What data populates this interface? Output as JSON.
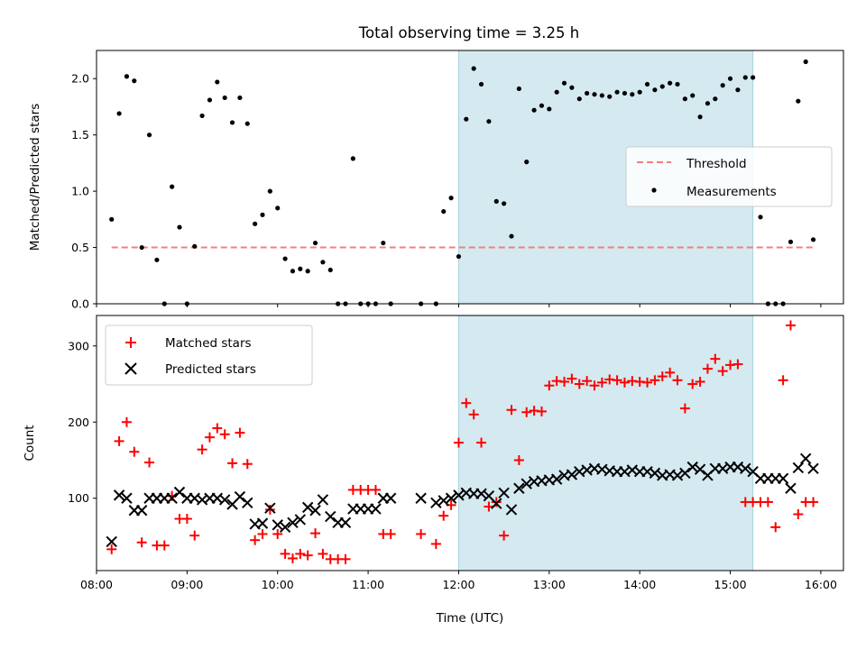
{
  "chart_data": [
    {
      "type": "scatter",
      "panel": "top",
      "title": "Total observing time = 3.25 h",
      "xlabel": "",
      "ylabel": "Matched/Predicted stars",
      "xlim": [
        "08:00",
        "16:15"
      ],
      "ylim": [
        0,
        2.25
      ],
      "yticks": [
        "0.0",
        "0.5",
        "1.0",
        "1.5",
        "2.0"
      ],
      "grid": false,
      "legend_position": "right",
      "highlight_band": {
        "from": "12:00",
        "to": "15:15",
        "color": "#d4eaf0"
      },
      "series": [
        {
          "name": "Threshold",
          "style": "dashed-line",
          "color": "#f08080",
          "x": [
            "08:10",
            "15:55"
          ],
          "y": [
            0.5,
            0.5
          ]
        },
        {
          "name": "Measurements",
          "style": "dot",
          "color": "#000000",
          "x": [
            "08:10",
            "08:15",
            "08:20",
            "08:25",
            "08:30",
            "08:35",
            "08:40",
            "08:45",
            "08:50",
            "08:55",
            "09:00",
            "09:05",
            "09:10",
            "09:15",
            "09:20",
            "09:25",
            "09:30",
            "09:35",
            "09:40",
            "09:45",
            "09:50",
            "09:55",
            "10:00",
            "10:05",
            "10:10",
            "10:15",
            "10:20",
            "10:25",
            "10:30",
            "10:35",
            "10:40",
            "10:45",
            "10:50",
            "10:55",
            "11:00",
            "11:05",
            "11:10",
            "11:15",
            "11:35",
            "11:45",
            "11:50",
            "11:55",
            "12:00",
            "12:05",
            "12:10",
            "12:15",
            "12:20",
            "12:25",
            "12:30",
            "12:35",
            "12:40",
            "12:45",
            "12:50",
            "12:55",
            "13:00",
            "13:05",
            "13:10",
            "13:15",
            "13:20",
            "13:25",
            "13:30",
            "13:35",
            "13:40",
            "13:45",
            "13:50",
            "13:55",
            "14:00",
            "14:05",
            "14:10",
            "14:15",
            "14:20",
            "14:25",
            "14:30",
            "14:35",
            "14:40",
            "14:45",
            "14:50",
            "14:55",
            "15:00",
            "15:05",
            "15:10",
            "15:15",
            "15:20",
            "15:25",
            "15:30",
            "15:35",
            "15:40",
            "15:45",
            "15:50",
            "15:55"
          ],
          "y": [
            0.75,
            1.69,
            2.02,
            1.98,
            0.5,
            1.5,
            0.39,
            0.0,
            1.04,
            0.68,
            0.0,
            0.51,
            1.67,
            1.81,
            1.97,
            1.83,
            1.61,
            1.83,
            1.6,
            0.71,
            0.79,
            1.0,
            0.85,
            0.4,
            0.29,
            0.31,
            0.29,
            0.54,
            0.37,
            0.3,
            0.0,
            0.0,
            1.29,
            0.0,
            0.0,
            0.0,
            0.54,
            0.0,
            0.0,
            0.0,
            0.82,
            0.94,
            0.42,
            1.64,
            2.09,
            1.95,
            1.62,
            0.91,
            0.89,
            0.6,
            1.91,
            1.26,
            1.72,
            1.76,
            1.73,
            1.88,
            1.96,
            1.92,
            1.82,
            1.87,
            1.86,
            1.85,
            1.84,
            1.88,
            1.87,
            1.86,
            1.88,
            1.95,
            1.9,
            1.93,
            1.96,
            1.95,
            1.82,
            1.85,
            1.66,
            1.78,
            1.82,
            1.94,
            2.0,
            1.9,
            2.01,
            2.01,
            0.77,
            0.0,
            0.0,
            0.0,
            0.55,
            1.8,
            2.15,
            0.57
          ]
        }
      ]
    },
    {
      "type": "scatter",
      "panel": "bottom",
      "title": "",
      "xlabel": "Time (UTC)",
      "ylabel": "Count",
      "xlim": [
        "08:00",
        "16:15"
      ],
      "ylim": [
        5,
        340
      ],
      "xticks": [
        "08:00",
        "09:00",
        "10:00",
        "11:00",
        "12:00",
        "13:00",
        "14:00",
        "15:00",
        "16:00"
      ],
      "yticks": [
        "100",
        "200",
        "300"
      ],
      "grid": false,
      "legend_position": "top-left",
      "highlight_band": {
        "from": "12:00",
        "to": "15:15",
        "color": "#d4eaf0"
      },
      "series": [
        {
          "name": "Matched stars",
          "marker": "plus",
          "color": "#ff0000",
          "x": [
            "08:10",
            "08:15",
            "08:20",
            "08:25",
            "08:30",
            "08:35",
            "08:40",
            "08:45",
            "08:50",
            "08:55",
            "09:00",
            "09:05",
            "09:10",
            "09:15",
            "09:20",
            "09:25",
            "09:30",
            "09:35",
            "09:40",
            "09:45",
            "09:50",
            "09:55",
            "10:00",
            "10:05",
            "10:10",
            "10:15",
            "10:20",
            "10:25",
            "10:30",
            "10:35",
            "10:40",
            "10:45",
            "10:50",
            "10:55",
            "11:00",
            "11:05",
            "11:10",
            "11:15",
            "11:35",
            "11:45",
            "11:50",
            "11:55",
            "12:00",
            "12:05",
            "12:10",
            "12:15",
            "12:20",
            "12:25",
            "12:30",
            "12:35",
            "12:40",
            "12:45",
            "12:50",
            "12:55",
            "13:00",
            "13:05",
            "13:10",
            "13:15",
            "13:20",
            "13:25",
            "13:30",
            "13:35",
            "13:40",
            "13:45",
            "13:50",
            "13:55",
            "14:00",
            "14:05",
            "14:10",
            "14:15",
            "14:20",
            "14:25",
            "14:30",
            "14:35",
            "14:40",
            "14:45",
            "14:50",
            "14:55",
            "15:00",
            "15:05",
            "15:10",
            "15:15",
            "15:20",
            "15:25",
            "15:30",
            "15:35",
            "15:40",
            "15:45",
            "15:50",
            "15:55"
          ],
          "y": [
            33,
            175,
            200,
            161,
            42,
            147,
            38,
            38,
            103,
            73,
            73,
            51,
            164,
            180,
            192,
            184,
            146,
            186,
            145,
            45,
            53,
            85,
            53,
            27,
            21,
            27,
            25,
            54,
            27,
            20,
            20,
            20,
            111,
            111,
            111,
            111,
            53,
            53,
            53,
            40,
            77,
            91,
            173,
            225,
            210,
            173,
            89,
            95,
            51,
            216,
            150,
            213,
            215,
            214,
            248,
            254,
            253,
            257,
            250,
            254,
            248,
            252,
            256,
            255,
            252,
            254,
            253,
            252,
            255,
            260,
            265,
            255,
            218,
            250,
            253,
            270,
            283,
            267,
            275,
            276,
            95,
            95,
            95,
            95,
            62,
            255,
            327,
            79,
            95,
            95
          ]
        },
        {
          "name": "Predicted stars",
          "marker": "x",
          "color": "#000000",
          "x": [
            "08:10",
            "08:15",
            "08:20",
            "08:25",
            "08:30",
            "08:35",
            "08:40",
            "08:45",
            "08:50",
            "08:55",
            "09:00",
            "09:05",
            "09:10",
            "09:15",
            "09:20",
            "09:25",
            "09:30",
            "09:35",
            "09:40",
            "09:45",
            "09:50",
            "09:55",
            "10:00",
            "10:05",
            "10:10",
            "10:15",
            "10:20",
            "10:25",
            "10:30",
            "10:35",
            "10:40",
            "10:45",
            "10:50",
            "10:55",
            "11:00",
            "11:05",
            "11:10",
            "11:15",
            "11:35",
            "11:45",
            "11:50",
            "11:55",
            "12:00",
            "12:05",
            "12:10",
            "12:15",
            "12:20",
            "12:25",
            "12:30",
            "12:35",
            "12:40",
            "12:45",
            "12:50",
            "12:55",
            "13:00",
            "13:05",
            "13:10",
            "13:15",
            "13:20",
            "13:25",
            "13:30",
            "13:35",
            "13:40",
            "13:45",
            "13:50",
            "13:55",
            "14:00",
            "14:05",
            "14:10",
            "14:15",
            "14:20",
            "14:25",
            "14:30",
            "14:35",
            "14:40",
            "14:45",
            "14:50",
            "14:55",
            "15:00",
            "15:05",
            "15:10",
            "15:15",
            "15:20",
            "15:25",
            "15:30",
            "15:35",
            "15:40",
            "15:45",
            "15:50",
            "15:55"
          ],
          "y": [
            43,
            104,
            100,
            84,
            84,
            100,
            100,
            100,
            100,
            108,
            100,
            100,
            98,
            100,
            100,
            98,
            92,
            102,
            94,
            66,
            67,
            87,
            65,
            62,
            68,
            72,
            88,
            84,
            98,
            76,
            68,
            68,
            86,
            86,
            86,
            86,
            100,
            100,
            100,
            94,
            97,
            100,
            104,
            107,
            106,
            106,
            103,
            93,
            107,
            85,
            113,
            119,
            122,
            123,
            124,
            125,
            130,
            131,
            135,
            137,
            139,
            138,
            136,
            135,
            135,
            137,
            135,
            135,
            133,
            130,
            131,
            130,
            133,
            141,
            138,
            130,
            139,
            139,
            141,
            141,
            139,
            135,
            126,
            126,
            126,
            126,
            113,
            140,
            152,
            139
          ]
        }
      ]
    }
  ]
}
